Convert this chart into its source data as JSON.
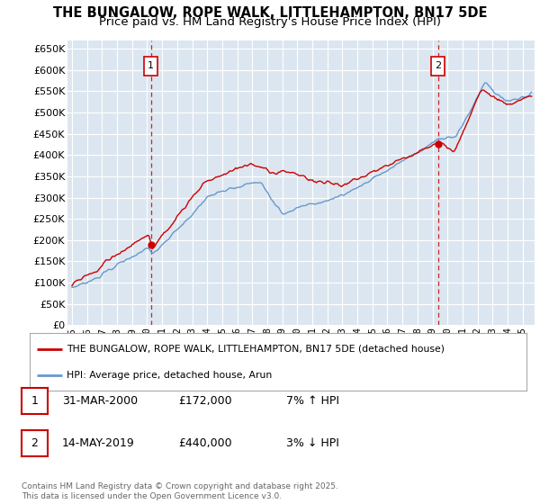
{
  "title": "THE BUNGALOW, ROPE WALK, LITTLEHAMPTON, BN17 5DE",
  "subtitle": "Price paid vs. HM Land Registry's House Price Index (HPI)",
  "plot_bg_color": "#dce6f0",
  "ylim": [
    0,
    670000
  ],
  "yticks": [
    0,
    50000,
    100000,
    150000,
    200000,
    250000,
    300000,
    350000,
    400000,
    450000,
    500000,
    550000,
    600000,
    650000
  ],
  "xlim_start": 1994.7,
  "xlim_end": 2025.8,
  "red_line_color": "#cc0000",
  "blue_line_color": "#6699cc",
  "marker1_x": 2000.25,
  "marker2_x": 2019.37,
  "legend_red": "THE BUNGALOW, ROPE WALK, LITTLEHAMPTON, BN17 5DE (detached house)",
  "legend_blue": "HPI: Average price, detached house, Arun",
  "table_row1": [
    "1",
    "31-MAR-2000",
    "£172,000",
    "7% ↑ HPI"
  ],
  "table_row2": [
    "2",
    "14-MAY-2019",
    "£440,000",
    "3% ↓ HPI"
  ],
  "footer": "Contains HM Land Registry data © Crown copyright and database right 2025.\nThis data is licensed under the Open Government Licence v3.0.",
  "grid_color": "#ffffff",
  "title_fontsize": 10.5,
  "subtitle_fontsize": 9.5
}
